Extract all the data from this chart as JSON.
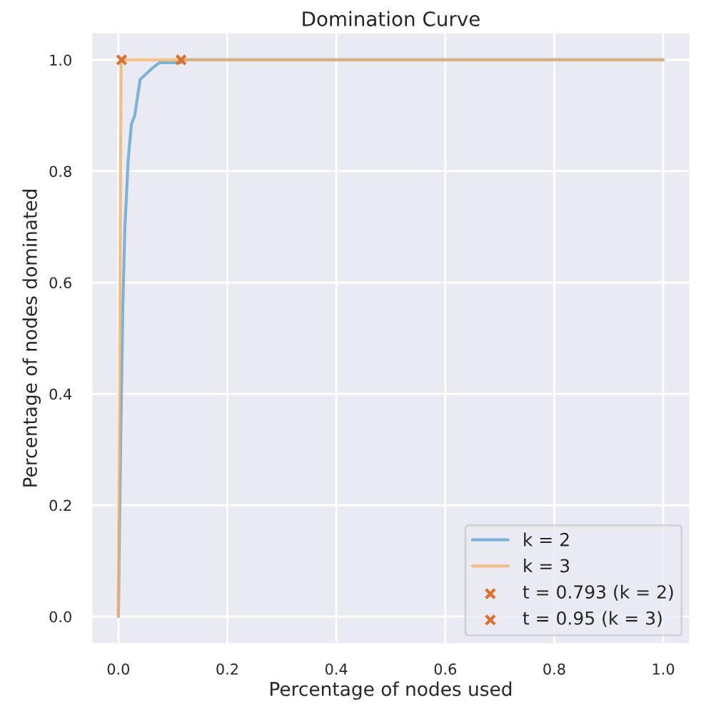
{
  "chart_data": {
    "type": "line",
    "title": "Domination Curve",
    "xlabel": "Percentage of nodes used",
    "ylabel": "Percentage of nodes dominated",
    "series": [
      {
        "name": "k = 2",
        "color": "#5b9fd0",
        "x": [
          0,
          0.004,
          0.008,
          0.012,
          0.018,
          0.024,
          0.03,
          0.04,
          0.06,
          0.075,
          0.114,
          0.12,
          1.0
        ],
        "values": [
          0,
          0.3,
          0.55,
          0.7,
          0.82,
          0.885,
          0.9,
          0.965,
          0.983,
          0.995,
          0.995,
          1.0,
          1.0
        ]
      },
      {
        "name": "k = 3",
        "color": "#f0b060",
        "x": [
          0,
          0.005,
          1.0
        ],
        "values": [
          0,
          1.0,
          1.0
        ]
      },
      {
        "name": "t = 0.793 (k = 2)",
        "type": "scatter",
        "marker": "cross",
        "color": "#e07028",
        "x": [
          0.115
        ],
        "values": [
          1.0
        ]
      },
      {
        "name": "t = 0.95 (k = 3)",
        "type": "scatter",
        "marker": "cross",
        "color": "#e07028",
        "x": [
          0.006
        ],
        "values": [
          1.0
        ]
      }
    ],
    "xlim": [
      -0.05,
      1.05
    ],
    "ylim": [
      -0.05,
      1.05
    ],
    "xticks": [
      {
        "value": 0,
        "label": "0.0"
      },
      0.2,
      0.4,
      0.6,
      0.8,
      {
        "value": 1,
        "label": "1.0"
      }
    ],
    "yticks": [
      {
        "value": 0,
        "label": "0.0"
      },
      0.2,
      0.4,
      0.6,
      0.8,
      {
        "value": 1,
        "label": "1.0"
      }
    ],
    "grid": true,
    "legend": "bottom right"
  }
}
